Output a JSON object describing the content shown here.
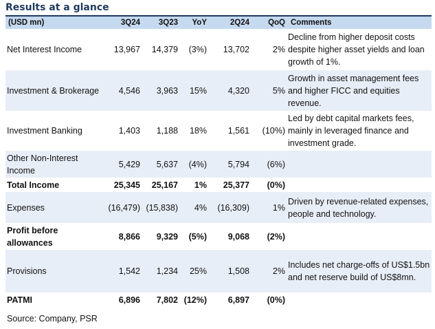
{
  "title": "Results at a glance",
  "columns": [
    "(USD mn)",
    "3Q24",
    "3Q23",
    "YoY",
    "2Q24",
    "QoQ",
    "Comments"
  ],
  "rows": [
    {
      "label": "Net Interest Income",
      "q3_24": "13,967",
      "q3_23": "14,379",
      "yoy": "(3%)",
      "q2_24": "13,702",
      "qoq": "2%",
      "comment": "Decline from higher deposit costs despite higher asset yields and loan growth of 1%."
    },
    {
      "label": "Investment & Brokerage",
      "q3_24": "4,546",
      "q3_23": "3,963",
      "yoy": "15%",
      "q2_24": "4,320",
      "qoq": "5%",
      "comment": "Growth in asset management fees and higher FICC and equities revenue."
    },
    {
      "label": "Investment Banking",
      "q3_24": "1,403",
      "q3_23": "1,188",
      "yoy": "18%",
      "q2_24": "1,561",
      "qoq": "(10%)",
      "comment": "Led by debt capital markets fees, mainly in leveraged finance and investment grade."
    },
    {
      "label": "Other Non-Interest Income",
      "q3_24": "5,429",
      "q3_23": "5,637",
      "yoy": "(4%)",
      "q2_24": "5,794",
      "qoq": "(6%)",
      "comment": ""
    },
    {
      "label": "Total Income",
      "q3_24": "25,345",
      "q3_23": "25,167",
      "yoy": "1%",
      "q2_24": "25,377",
      "qoq": "(0%)",
      "comment": ""
    },
    {
      "label": "Expenses",
      "q3_24": "(16,479)",
      "q3_23": "(15,838)",
      "yoy": "4%",
      "q2_24": "(16,309)",
      "qoq": "1%",
      "comment": "Driven by revenue-related expenses, people and technology."
    },
    {
      "label": "Profit before allowances",
      "q3_24": "8,866",
      "q3_23": "9,329",
      "yoy": "(5%)",
      "q2_24": "9,068",
      "qoq": "(2%)",
      "comment": ""
    },
    {
      "label": "Provisions",
      "q3_24": "1,542",
      "q3_23": "1,234",
      "yoy": "25%",
      "q2_24": "1,508",
      "qoq": "2%",
      "comment": "Includes net charge-offs of US$1.5bn and net reserve build of US$8mn."
    },
    {
      "label": "PATMI",
      "q3_24": "6,896",
      "q3_23": "7,802",
      "yoy": "(12%)",
      "q2_24": "6,897",
      "qoq": "(0%)",
      "comment": ""
    }
  ],
  "source": "Source: Company, PSR",
  "colors": {
    "header_bg": "#c5d9ef",
    "shade_bg": "#e8eef7",
    "title": "#1f3a5f"
  }
}
